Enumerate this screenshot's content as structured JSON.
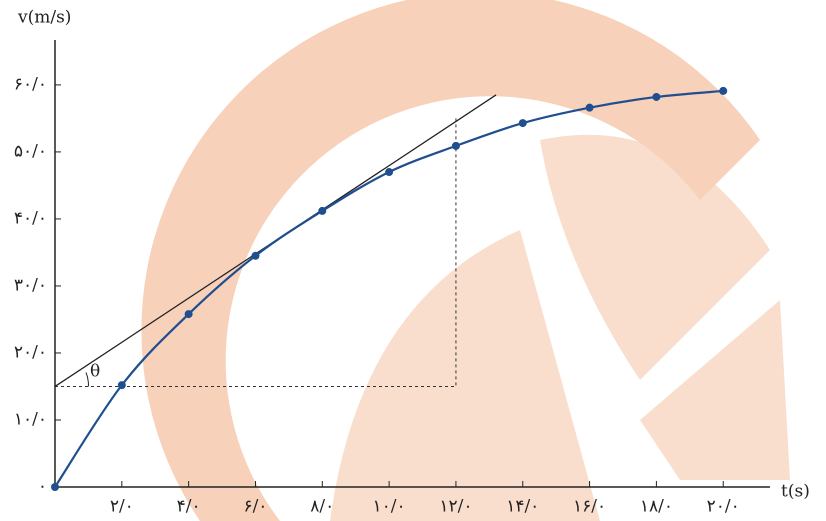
{
  "chart_data": {
    "type": "line",
    "x_label": "t(s)",
    "y_label": "v(m/s)",
    "x": [
      0,
      2,
      4,
      6,
      8,
      10,
      12,
      14,
      16,
      18,
      20
    ],
    "series": [
      {
        "color": "#1f4f8f",
        "values": [
          0,
          15.2,
          25.8,
          34.5,
          41.2,
          47,
          50.9,
          54.3,
          56.6,
          58.2,
          59.1
        ]
      }
    ],
    "xlim": [
      0,
      21.4
    ],
    "ylim": [
      0,
      66.7
    ],
    "xticks": [
      {
        "value": 2,
        "label": "۲/۰"
      },
      {
        "value": 4,
        "label": "۴/۰"
      },
      {
        "value": 6,
        "label": "۶/۰"
      },
      {
        "value": 8,
        "label": "۸/۰"
      },
      {
        "value": 10,
        "label": "۱۰/۰"
      },
      {
        "value": 12,
        "label": "۱۲/۰"
      },
      {
        "value": 14,
        "label": "۱۴/۰"
      },
      {
        "value": 16,
        "label": "۱۶/۰"
      },
      {
        "value": 18,
        "label": "۱۸/۰"
      },
      {
        "value": 20,
        "label": "۲۰/۰"
      }
    ],
    "yticks": [
      {
        "value": 0,
        "label": "۰"
      },
      {
        "value": 10,
        "label": "۱۰/۰"
      },
      {
        "value": 20,
        "label": "۲۰/۰"
      },
      {
        "value": 30,
        "label": "۳۰/۰"
      },
      {
        "value": 40,
        "label": "۴۰/۰"
      },
      {
        "value": 50,
        "label": "۵۰/۰"
      },
      {
        "value": 60,
        "label": "۶۰/۰"
      }
    ],
    "tangent": {
      "x": [
        0,
        13.2
      ],
      "y": [
        15,
        58.5
      ]
    },
    "guide": {
      "x": [
        0,
        12,
        12
      ],
      "y": [
        15,
        15,
        55
      ]
    },
    "angle_label": "θ"
  }
}
